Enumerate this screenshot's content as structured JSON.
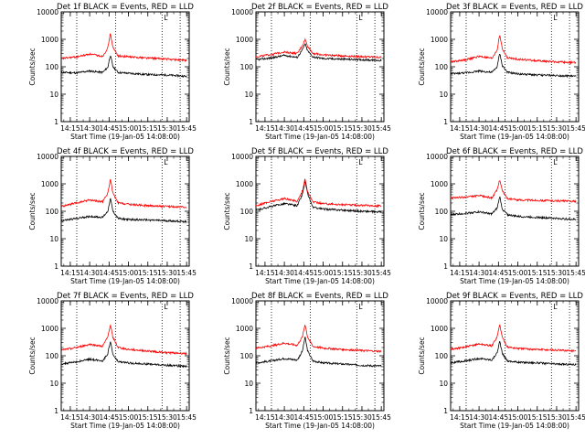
{
  "chart_data": [
    {
      "type": "line",
      "title": "Det 1f BLACK = Events, RED = LLD",
      "xlabel": "Start Time (19-Jan-05 14:08:00)",
      "ylabel": "Counts/sec",
      "yscale": "log",
      "ylim": [
        1,
        10000
      ],
      "xlim": [
        "14:08",
        "15:47"
      ],
      "x_ticks": [
        "14:15",
        "14:30",
        "14:45",
        "15:00",
        "15:15",
        "15:30",
        "15:45"
      ],
      "y_ticks": [
        "1",
        "10",
        "100",
        "1000",
        "10000"
      ],
      "vlines": [
        "14:20",
        "14:50",
        "15:26",
        "15:40"
      ],
      "marker_label": "L",
      "series": [
        {
          "name": "BLACK = Events",
          "color": "#000000",
          "x": [
            "14:08",
            "14:20",
            "14:30",
            "14:40",
            "14:44",
            "14:46",
            "14:48",
            "14:52",
            "15:00",
            "15:15",
            "15:30",
            "15:45"
          ],
          "y": [
            62,
            60,
            70,
            62,
            95,
            280,
            100,
            62,
            58,
            52,
            50,
            45
          ]
        },
        {
          "name": "RED = LLD",
          "color": "#ff0000",
          "x": [
            "14:08",
            "14:20",
            "14:30",
            "14:40",
            "14:44",
            "14:46",
            "14:48",
            "14:52",
            "15:00",
            "15:15",
            "15:30",
            "15:45"
          ],
          "y": [
            200,
            230,
            290,
            240,
            480,
            1700,
            500,
            250,
            230,
            210,
            190,
            170
          ]
        }
      ]
    },
    {
      "type": "line",
      "title": "Det 2f BLACK = Events, RED = LLD",
      "xlabel": "Start Time (19-Jan-05 14:08:00)",
      "ylabel": "Counts/sec",
      "yscale": "log",
      "ylim": [
        1,
        10000
      ],
      "xlim": [
        "14:08",
        "15:47"
      ],
      "x_ticks": [
        "14:15",
        "14:30",
        "14:45",
        "15:00",
        "15:15",
        "15:30",
        "15:45"
      ],
      "y_ticks": [
        "1",
        "10",
        "100",
        "1000",
        "10000"
      ],
      "vlines": [
        "14:20",
        "14:50",
        "15:26",
        "15:40"
      ],
      "marker_label": "L",
      "series": [
        {
          "name": "BLACK = Events",
          "color": "#000000",
          "x": [
            "14:08",
            "14:20",
            "14:30",
            "14:40",
            "14:44",
            "14:46",
            "14:48",
            "14:52",
            "15:00",
            "15:15",
            "15:30",
            "15:45"
          ],
          "y": [
            180,
            210,
            260,
            220,
            420,
            700,
            380,
            230,
            200,
            190,
            180,
            170
          ]
        },
        {
          "name": "RED = LLD",
          "color": "#ff0000",
          "x": [
            "14:08",
            "14:20",
            "14:30",
            "14:40",
            "14:44",
            "14:46",
            "14:48",
            "14:52",
            "15:00",
            "15:15",
            "15:30",
            "15:45"
          ],
          "y": [
            230,
            280,
            350,
            300,
            600,
            1000,
            560,
            310,
            270,
            250,
            235,
            220
          ]
        }
      ]
    },
    {
      "type": "line",
      "title": "Det 3f BLACK = Events, RED = LLD",
      "xlabel": "Start Time (19-Jan-05 14:08:00)",
      "ylabel": "Counts/sec",
      "yscale": "log",
      "ylim": [
        1,
        10000
      ],
      "xlim": [
        "14:08",
        "15:47"
      ],
      "x_ticks": [
        "14:15",
        "14:30",
        "14:45",
        "15:00",
        "15:15",
        "15:30",
        "15:45"
      ],
      "y_ticks": [
        "1",
        "10",
        "100",
        "1000",
        "10000"
      ],
      "vlines": [
        "14:20",
        "14:50",
        "15:26",
        "15:40"
      ],
      "marker_label": "L",
      "series": [
        {
          "name": "BLACK = Events",
          "color": "#000000",
          "x": [
            "14:08",
            "14:20",
            "14:30",
            "14:40",
            "14:44",
            "14:46",
            "14:48",
            "14:52",
            "15:00",
            "15:15",
            "15:30",
            "15:45"
          ],
          "y": [
            55,
            60,
            70,
            62,
            100,
            320,
            110,
            62,
            55,
            50,
            48,
            45
          ]
        },
        {
          "name": "RED = LLD",
          "color": "#ff0000",
          "x": [
            "14:08",
            "14:20",
            "14:30",
            "14:40",
            "14:44",
            "14:46",
            "14:48",
            "14:52",
            "15:00",
            "15:15",
            "15:30",
            "15:45"
          ],
          "y": [
            150,
            180,
            240,
            200,
            420,
            1500,
            450,
            210,
            190,
            165,
            150,
            140
          ]
        }
      ]
    },
    {
      "type": "line",
      "title": "Det 4f BLACK = Events, RED = LLD",
      "xlabel": "Start Time (19-Jan-05 14:08:00)",
      "ylabel": "Counts/sec",
      "yscale": "log",
      "ylim": [
        1,
        10000
      ],
      "xlim": [
        "14:08",
        "15:47"
      ],
      "x_ticks": [
        "14:15",
        "14:30",
        "14:45",
        "15:00",
        "15:15",
        "15:30",
        "15:45"
      ],
      "y_ticks": [
        "1",
        "10",
        "100",
        "1000",
        "10000"
      ],
      "vlines": [
        "14:20",
        "14:50",
        "15:26",
        "15:40"
      ],
      "marker_label": "L",
      "series": [
        {
          "name": "BLACK = Events",
          "color": "#000000",
          "x": [
            "14:08",
            "14:20",
            "14:30",
            "14:40",
            "14:44",
            "14:46",
            "14:48",
            "14:52",
            "15:00",
            "15:15",
            "15:30",
            "15:45"
          ],
          "y": [
            45,
            55,
            65,
            60,
            100,
            300,
            100,
            55,
            50,
            48,
            45,
            42
          ]
        },
        {
          "name": "RED = LLD",
          "color": "#ff0000",
          "x": [
            "14:08",
            "14:20",
            "14:30",
            "14:40",
            "14:44",
            "14:46",
            "14:48",
            "14:52",
            "15:00",
            "15:15",
            "15:30",
            "15:45"
          ],
          "y": [
            150,
            200,
            260,
            220,
            450,
            1500,
            450,
            200,
            180,
            160,
            150,
            140
          ]
        }
      ]
    },
    {
      "type": "line",
      "title": "Det 5f BLACK = Events, RED = LLD",
      "xlabel": "Start Time (19-Jan-05 14:08:00)",
      "ylabel": "Counts/sec",
      "yscale": "log",
      "ylim": [
        1,
        10000
      ],
      "xlim": [
        "14:08",
        "15:47"
      ],
      "x_ticks": [
        "14:15",
        "14:30",
        "14:45",
        "15:00",
        "15:15",
        "15:30",
        "15:45"
      ],
      "y_ticks": [
        "1",
        "10",
        "100",
        "1000",
        "10000"
      ],
      "vlines": [
        "14:20",
        "14:50",
        "15:26",
        "15:40"
      ],
      "marker_label": "L",
      "series": [
        {
          "name": "BLACK = Events",
          "color": "#000000",
          "x": [
            "14:08",
            "14:20",
            "14:30",
            "14:40",
            "14:44",
            "14:46",
            "14:48",
            "14:52",
            "15:00",
            "15:15",
            "15:30",
            "15:45"
          ],
          "y": [
            110,
            150,
            190,
            160,
            420,
            1300,
            420,
            140,
            120,
            110,
            100,
            95
          ]
        },
        {
          "name": "RED = LLD",
          "color": "#ff0000",
          "x": [
            "14:08",
            "14:20",
            "14:30",
            "14:40",
            "14:44",
            "14:46",
            "14:48",
            "14:52",
            "15:00",
            "15:15",
            "15:30",
            "15:45"
          ],
          "y": [
            160,
            230,
            290,
            230,
            560,
            1550,
            520,
            220,
            190,
            175,
            165,
            155
          ]
        }
      ]
    },
    {
      "type": "line",
      "title": "Det 6f BLACK = Events, RED = LLD",
      "xlabel": "Start Time (19-Jan-05 14:08:00)",
      "ylabel": "Counts/sec",
      "yscale": "log",
      "ylim": [
        1,
        10000
      ],
      "xlim": [
        "14:08",
        "15:47"
      ],
      "x_ticks": [
        "14:15",
        "14:30",
        "14:45",
        "15:00",
        "15:15",
        "15:30",
        "15:45"
      ],
      "y_ticks": [
        "1",
        "10",
        "100",
        "1000",
        "10000"
      ],
      "vlines": [
        "14:20",
        "14:50",
        "15:26",
        "15:40"
      ],
      "marker_label": "L",
      "series": [
        {
          "name": "BLACK = Events",
          "color": "#000000",
          "x": [
            "14:08",
            "14:20",
            "14:30",
            "14:40",
            "14:44",
            "14:46",
            "14:48",
            "14:52",
            "15:00",
            "15:15",
            "15:30",
            "15:45"
          ],
          "y": [
            75,
            85,
            95,
            80,
            130,
            350,
            120,
            75,
            65,
            60,
            55,
            50
          ]
        },
        {
          "name": "RED = LLD",
          "color": "#ff0000",
          "x": [
            "14:08",
            "14:20",
            "14:30",
            "14:40",
            "14:44",
            "14:46",
            "14:48",
            "14:52",
            "15:00",
            "15:15",
            "15:30",
            "15:45"
          ],
          "y": [
            300,
            330,
            370,
            310,
            600,
            1500,
            550,
            290,
            260,
            250,
            240,
            230
          ]
        }
      ]
    },
    {
      "type": "line",
      "title": "Det 7f BLACK = Events, RED = LLD",
      "xlabel": "Start Time (19-Jan-05 14:08:00)",
      "ylabel": "Counts/sec",
      "yscale": "log",
      "ylim": [
        1,
        10000
      ],
      "xlim": [
        "14:08",
        "15:47"
      ],
      "x_ticks": [
        "14:15",
        "14:30",
        "14:45",
        "15:00",
        "15:15",
        "15:30",
        "15:45"
      ],
      "y_ticks": [
        "1",
        "10",
        "100",
        "1000",
        "10000"
      ],
      "vlines": [
        "14:20",
        "14:50",
        "15:26",
        "15:40"
      ],
      "marker_label": "L",
      "series": [
        {
          "name": "BLACK = Events",
          "color": "#000000",
          "x": [
            "14:08",
            "14:20",
            "14:30",
            "14:40",
            "14:44",
            "14:46",
            "14:48",
            "14:52",
            "15:00",
            "15:15",
            "15:30",
            "15:45"
          ],
          "y": [
            50,
            60,
            75,
            65,
            120,
            350,
            110,
            60,
            55,
            50,
            45,
            42
          ]
        },
        {
          "name": "RED = LLD",
          "color": "#ff0000",
          "x": [
            "14:08",
            "14:20",
            "14:30",
            "14:40",
            "14:44",
            "14:46",
            "14:48",
            "14:52",
            "15:00",
            "15:15",
            "15:30",
            "15:45"
          ],
          "y": [
            160,
            200,
            260,
            220,
            480,
            1400,
            460,
            200,
            170,
            150,
            130,
            120
          ]
        }
      ]
    },
    {
      "type": "line",
      "title": "Det 8f BLACK = Events, RED = LLD",
      "xlabel": "Start Time (19-Jan-05 14:08:00)",
      "ylabel": "Counts/sec",
      "yscale": "log",
      "ylim": [
        1,
        10000
      ],
      "xlim": [
        "14:08",
        "15:47"
      ],
      "x_ticks": [
        "14:15",
        "14:30",
        "14:45",
        "15:00",
        "15:15",
        "15:30",
        "15:45"
      ],
      "y_ticks": [
        "1",
        "10",
        "100",
        "1000",
        "10000"
      ],
      "vlines": [
        "14:20",
        "14:50",
        "15:26",
        "15:40"
      ],
      "marker_label": "L",
      "series": [
        {
          "name": "BLACK = Events",
          "color": "#000000",
          "x": [
            "14:08",
            "14:20",
            "14:30",
            "14:40",
            "14:44",
            "14:46",
            "14:48",
            "14:52",
            "15:00",
            "15:15",
            "15:30",
            "15:45"
          ],
          "y": [
            55,
            65,
            80,
            70,
            150,
            500,
            150,
            65,
            55,
            50,
            45,
            42
          ]
        },
        {
          "name": "RED = LLD",
          "color": "#ff0000",
          "x": [
            "14:08",
            "14:20",
            "14:30",
            "14:40",
            "14:44",
            "14:46",
            "14:48",
            "14:52",
            "15:00",
            "15:15",
            "15:30",
            "15:45"
          ],
          "y": [
            190,
            230,
            290,
            240,
            500,
            1450,
            480,
            220,
            190,
            170,
            155,
            145
          ]
        }
      ]
    },
    {
      "type": "line",
      "title": "Det 9f BLACK = Events, RED = LLD",
      "xlabel": "Start Time (19-Jan-05 14:08:00)",
      "ylabel": "Counts/sec",
      "yscale": "log",
      "ylim": [
        1,
        10000
      ],
      "xlim": [
        "14:08",
        "15:47"
      ],
      "x_ticks": [
        "14:15",
        "14:30",
        "14:45",
        "15:00",
        "15:15",
        "15:30",
        "15:45"
      ],
      "y_ticks": [
        "1",
        "10",
        "100",
        "1000",
        "10000"
      ],
      "vlines": [
        "14:20",
        "14:50",
        "15:26",
        "15:40"
      ],
      "marker_label": "L",
      "series": [
        {
          "name": "BLACK = Events",
          "color": "#000000",
          "x": [
            "14:08",
            "14:20",
            "14:30",
            "14:40",
            "14:44",
            "14:46",
            "14:48",
            "14:52",
            "15:00",
            "15:15",
            "15:30",
            "15:45"
          ],
          "y": [
            55,
            65,
            80,
            70,
            130,
            350,
            120,
            65,
            58,
            55,
            50,
            48
          ]
        },
        {
          "name": "RED = LLD",
          "color": "#ff0000",
          "x": [
            "14:08",
            "14:20",
            "14:30",
            "14:40",
            "14:44",
            "14:46",
            "14:48",
            "14:52",
            "15:00",
            "15:15",
            "15:30",
            "15:45"
          ],
          "y": [
            170,
            210,
            270,
            230,
            500,
            1400,
            470,
            210,
            185,
            170,
            160,
            150
          ]
        }
      ]
    }
  ]
}
